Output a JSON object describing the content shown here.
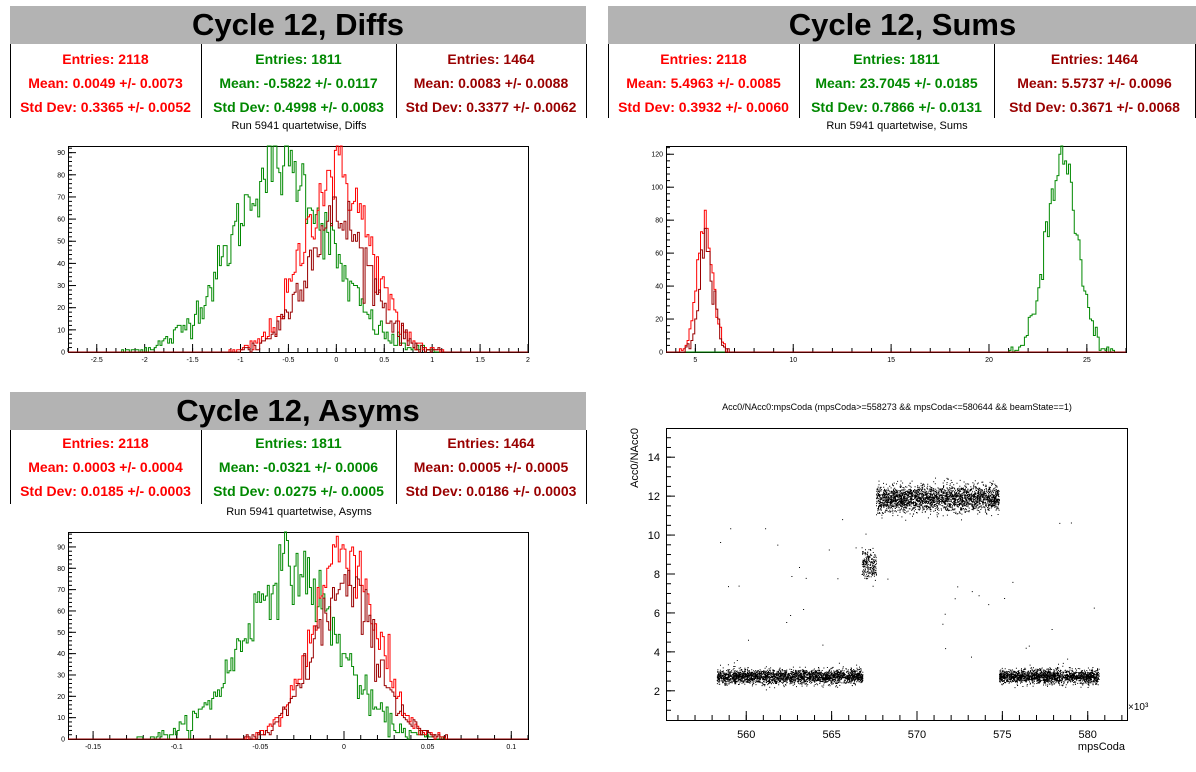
{
  "colors": {
    "c1": "#ff0000",
    "c2": "#008800",
    "c3": "#990000",
    "title_bg": "#b3b3b3"
  },
  "panels": {
    "diffs": {
      "title": "Cycle 12, Diffs",
      "subtitle": "Run 5941 quartetwise, Diffs",
      "stats": [
        {
          "entries": "Entries: 2118",
          "mean": "Mean: 0.0049 +/- 0.0073",
          "std": "Std Dev: 0.3365 +/- 0.0052"
        },
        {
          "entries": "Entries: 1811",
          "mean": "Mean: -0.5822 +/- 0.0117",
          "std": "Std Dev: 0.4998 +/- 0.0083"
        },
        {
          "entries": "Entries: 1464",
          "mean": "Mean: 0.0083 +/- 0.0088",
          "std": "Std Dev: 0.3377 +/- 0.0062"
        }
      ]
    },
    "sums": {
      "title": "Cycle 12, Sums",
      "subtitle": "Run 5941 quartetwise, Sums",
      "stats": [
        {
          "entries": "Entries: 2118",
          "mean": "Mean: 5.4963 +/- 0.0085",
          "std": "Std Dev: 0.3932 +/- 0.0060"
        },
        {
          "entries": "Entries: 1811",
          "mean": "Mean: 23.7045 +/- 0.0185",
          "std": "Std Dev: 0.7866 +/- 0.0131"
        },
        {
          "entries": "Entries: 1464",
          "mean": "Mean: 5.5737 +/- 0.0096",
          "std": "Std Dev: 0.3671 +/- 0.0068"
        }
      ]
    },
    "asyms": {
      "title": "Cycle 12, Asyms",
      "subtitle": "Run 5941 quartetwise, Asyms",
      "stats": [
        {
          "entries": "Entries: 2118",
          "mean": "Mean: 0.0003 +/- 0.0004",
          "std": "Std Dev: 0.0185 +/- 0.0003"
        },
        {
          "entries": "Entries: 1811",
          "mean": "Mean: -0.0321 +/- 0.0006",
          "std": "Std Dev: 0.0275 +/- 0.0005"
        },
        {
          "entries": "Entries: 1464",
          "mean": "Mean: 0.0005 +/- 0.0005",
          "std": "Std Dev: 0.0186 +/- 0.0003"
        }
      ]
    },
    "scatter": {
      "title": "Acc0/NAcc0:mpsCoda (mpsCoda>=558273 && mpsCoda<=580644 && beamState==1)"
    }
  },
  "chart_data": [
    {
      "id": "diffs",
      "type": "histogram",
      "xlim": [
        -2.8,
        2.0
      ],
      "ylim": [
        0,
        93
      ],
      "xticks": [
        -2.5,
        -2,
        -1.5,
        -1,
        -0.5,
        0,
        0.5,
        1,
        1.5,
        2
      ],
      "xtick_labels": [
        "-2.5",
        "-2",
        "-1.5",
        "-1",
        "-0.5",
        "0",
        "0.5",
        "1",
        "1.5",
        "2"
      ],
      "yticks": [
        0,
        10,
        20,
        30,
        40,
        50,
        60,
        70,
        80,
        90
      ],
      "series": [
        {
          "color": "#008800",
          "mean": -0.5822,
          "std": 0.4998,
          "peak": 85
        },
        {
          "color": "#ff0000",
          "mean": 0.0049,
          "std": 0.3365,
          "peak": 82
        },
        {
          "color": "#990000",
          "mean": 0.0083,
          "std": 0.3377,
          "peak": 60
        }
      ]
    },
    {
      "id": "sums",
      "type": "histogram",
      "xlim": [
        3.5,
        27.0
      ],
      "ylim": [
        0,
        125
      ],
      "xticks": [
        5,
        10,
        15,
        20,
        25
      ],
      "xtick_labels": [
        "5",
        "10",
        "15",
        "20",
        "25"
      ],
      "yticks": [
        0,
        20,
        40,
        60,
        80,
        100,
        120
      ],
      "series": [
        {
          "color": "#008800",
          "mean": 23.7045,
          "std": 0.7866,
          "peak": 119
        },
        {
          "color": "#ff0000",
          "mean": 5.4963,
          "std": 0.3932,
          "peak": 80
        },
        {
          "color": "#990000",
          "mean": 5.5737,
          "std": 0.3671,
          "peak": 70
        }
      ]
    },
    {
      "id": "asyms",
      "type": "histogram",
      "xlim": [
        -0.165,
        0.11
      ],
      "ylim": [
        0,
        97
      ],
      "xticks": [
        -0.15,
        -0.1,
        -0.05,
        0,
        0.05,
        0.1
      ],
      "xtick_labels": [
        "-0.15",
        "-0.1",
        "-0.05",
        "0",
        "0.05",
        "0.1"
      ],
      "yticks": [
        0,
        10,
        20,
        30,
        40,
        50,
        60,
        70,
        80,
        90
      ],
      "series": [
        {
          "color": "#008800",
          "mean": -0.0321,
          "std": 0.0275,
          "peak": 80
        },
        {
          "color": "#ff0000",
          "mean": 0.0003,
          "std": 0.0185,
          "peak": 90
        },
        {
          "color": "#990000",
          "mean": 0.0005,
          "std": 0.0186,
          "peak": 70
        }
      ]
    },
    {
      "id": "scatter",
      "type": "scatter",
      "xlabel": "mpsCoda",
      "ylabel": "Acc0/NAcc0",
      "x_multiplier_label": "×10³",
      "xlim": [
        555.3,
        582.3
      ],
      "ylim": [
        0.5,
        15.5
      ],
      "xticks": [
        560,
        565,
        570,
        575,
        580
      ],
      "xtick_labels": [
        "560",
        "565",
        "570",
        "575",
        "580"
      ],
      "yticks": [
        2,
        4,
        6,
        8,
        10,
        12,
        14
      ],
      "ytick_labels": [
        "2",
        "4",
        "6",
        "8",
        "10",
        "12",
        "14"
      ],
      "clusters": [
        {
          "x_range": [
            558.27,
            566.8
          ],
          "y_center": 2.75,
          "y_spread": 0.3,
          "count": 2600
        },
        {
          "x_range": [
            566.75,
            567.6
          ],
          "y_center": 8.5,
          "y_spread": 0.6,
          "count": 220
        },
        {
          "x_range": [
            567.6,
            574.8
          ],
          "y_center": 11.9,
          "y_spread": 0.55,
          "count": 2600
        },
        {
          "x_range": [
            574.8,
            580.64
          ],
          "y_center": 2.75,
          "y_spread": 0.3,
          "count": 1900
        }
      ]
    }
  ]
}
